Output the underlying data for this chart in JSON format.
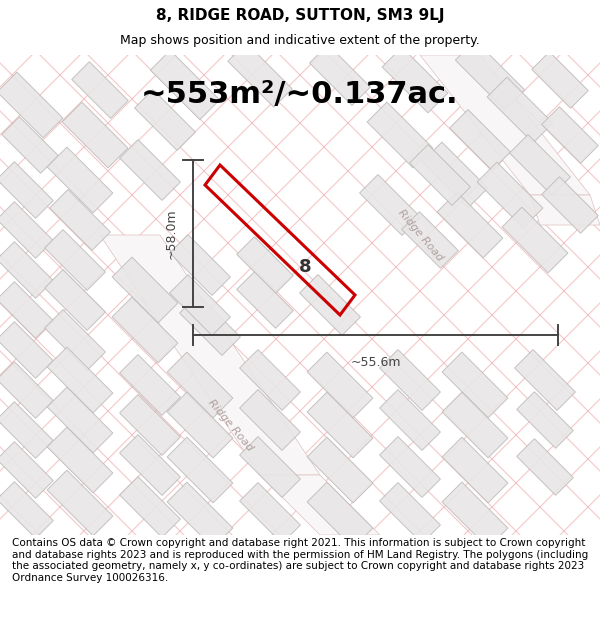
{
  "title": "8, RIDGE ROAD, SUTTON, SM3 9LJ",
  "subtitle": "Map shows position and indicative extent of the property.",
  "area_text": "~553m²/~0.137ac.",
  "property_label": "8",
  "dim_vertical": "~58.0m",
  "dim_horizontal": "~55.6m",
  "road_label_upper": "Ridge Road",
  "road_label_lower": "Ridge Road",
  "footer": "Contains OS data © Crown copyright and database right 2021. This information is subject to Crown copyright and database rights 2023 and is reproduced with the permission of HM Land Registry. The polygons (including the associated geometry, namely x, y co-ordinates) are subject to Crown copyright and database rights 2023 Ordnance Survey 100026316.",
  "bg_color": "#ffffff",
  "map_bg": "#ffffff",
  "tile_fill": "#e8e6e6",
  "tile_edge": "#c0bcbc",
  "red_line": "#cc0000",
  "pink_line": "#f0b0b0",
  "title_fontsize": 11,
  "subtitle_fontsize": 9,
  "area_fontsize": 22,
  "footer_fontsize": 7.5,
  "road_color": "#d0b0b0",
  "road_outline": "#e0c0c0",
  "dim_color": "#444444",
  "label_color": "#333333"
}
